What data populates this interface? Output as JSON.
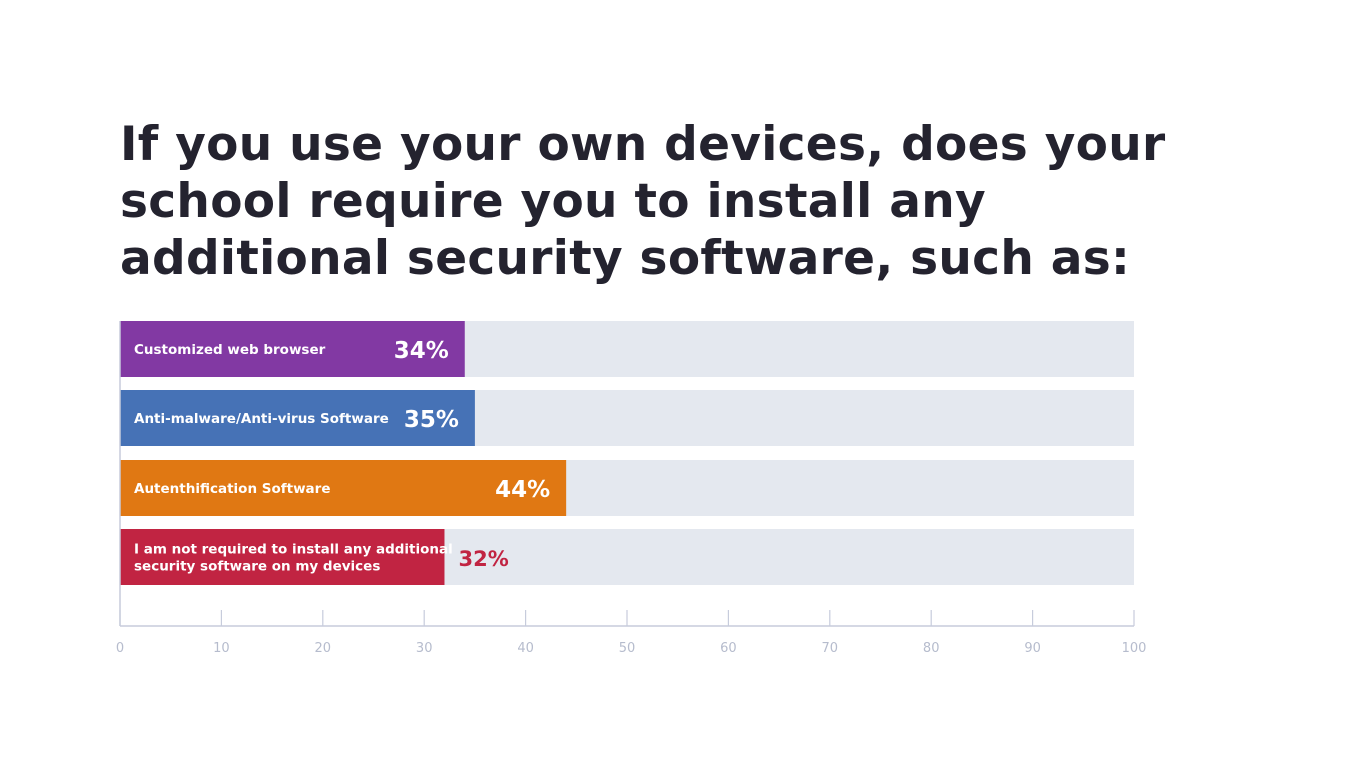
{
  "chart_data": {
    "type": "bar",
    "orientation": "horizontal",
    "title": "If you use your own devices, does your school require you to install any additional security software, such as:",
    "categories": [
      "Customized web browser",
      "Anti-malware/Anti-virus Software",
      "Autenthification Software",
      "I am not required to install any additional security software on my devices"
    ],
    "category_lines": [
      [
        "Customized web browser"
      ],
      [
        "Anti-malware/Anti-virus Software"
      ],
      [
        "Autenthification Software"
      ],
      [
        "I am not required to install any additional",
        "security software on my devices"
      ]
    ],
    "values": [
      34,
      35,
      44,
      32
    ],
    "value_labels": [
      "34%",
      "35%",
      "44%",
      "32%"
    ],
    "colors": [
      "#8239a3",
      "#4672b6",
      "#e07813",
      "#c12442"
    ],
    "track_color": "#e4e8ef",
    "xlim": [
      0,
      100
    ],
    "xticks": [
      0,
      10,
      20,
      30,
      40,
      50,
      60,
      70,
      80,
      90,
      100
    ],
    "xtick_labels": [
      "0",
      "10",
      "20",
      "30",
      "40",
      "50",
      "60",
      "70",
      "80",
      "90",
      "100"
    ],
    "xlabel": "",
    "ylabel": "",
    "grid": false,
    "legend": "none"
  }
}
